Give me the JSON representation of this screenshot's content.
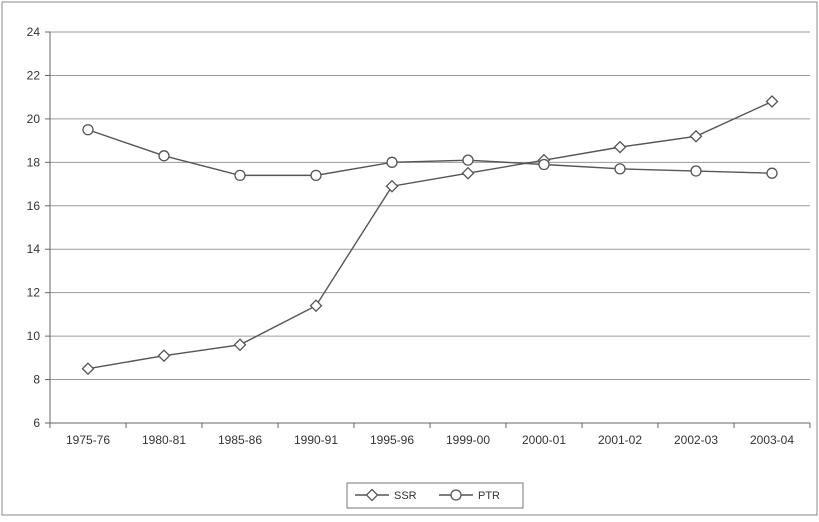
{
  "chart_data": {
    "type": "line",
    "title": "",
    "xlabel": "",
    "ylabel": "",
    "categories": [
      "1975-76",
      "1980-81",
      "1985-86",
      "1990-91",
      "1995-96",
      "1999-00",
      "2000-01",
      "2001-02",
      "2002-03",
      "2003-04"
    ],
    "ylim": [
      6,
      24
    ],
    "yticks": [
      "6",
      "8",
      "10",
      "12",
      "14",
      "16",
      "18",
      "20",
      "22",
      "24"
    ],
    "grid": true,
    "legend_position": "bottom",
    "series": [
      {
        "name": "SSR",
        "marker": "diamond",
        "color": "#555555",
        "values": [
          8.5,
          9.1,
          9.6,
          11.4,
          16.9,
          17.5,
          18.1,
          18.7,
          19.2,
          20.8
        ]
      },
      {
        "name": "PTR",
        "marker": "circle",
        "color": "#555555",
        "values": [
          19.5,
          18.3,
          17.4,
          17.4,
          18.0,
          18.1,
          17.9,
          17.7,
          17.6,
          17.5
        ]
      }
    ]
  }
}
